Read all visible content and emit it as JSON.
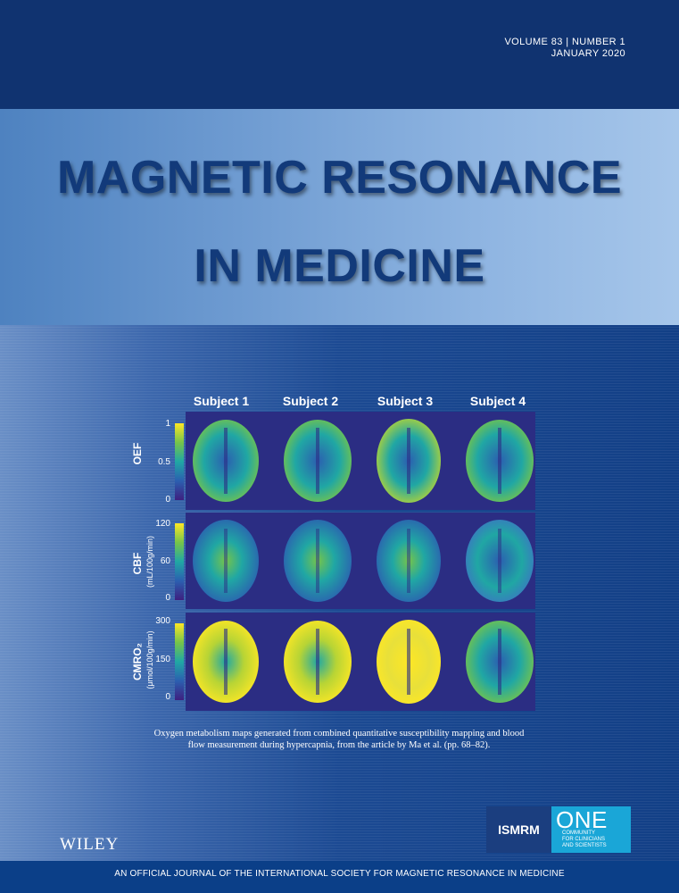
{
  "volume_issue": "VOLUME 83 | NUMBER 1",
  "issue_date": "JANUARY 2020",
  "journal_title_line1": "MAGNETIC RESONANCE",
  "journal_title_line2": "IN MEDICINE",
  "figure": {
    "columns": [
      "Subject 1",
      "Subject 2",
      "Subject 3",
      "Subject 4"
    ],
    "rows": [
      {
        "label": "OEF",
        "unit": "",
        "ticks": [
          "1",
          "0.5",
          "0"
        ]
      },
      {
        "label": "CBF",
        "unit": "(mL/100g/min)",
        "ticks": [
          "120",
          "60",
          "0"
        ]
      },
      {
        "label": "CMRO₂",
        "unit": "(μmol/100g/min)",
        "ticks": [
          "300",
          "150",
          "0"
        ]
      }
    ],
    "colormap": [
      "#3e1f7f",
      "#2b5fb0",
      "#20a7a4",
      "#76c44a",
      "#fde725"
    ],
    "panel_background": "#2b2d83"
  },
  "caption_line1": "Oxygen metabolism maps generated from combined quantitative susceptibility mapping and blood",
  "caption_line2": "flow measurement during hypercapnia, from the article by Ma et al. (pp. 68–82).",
  "publisher_logo": "WILEY",
  "society_logo": {
    "name": "ISMRM",
    "word": "ONE",
    "subtitle_1": "COMMUNITY",
    "subtitle_2": "FOR CLINICIANS",
    "subtitle_3": "AND SCIENTISTS"
  },
  "footer": "AN OFFICIAL JOURNAL OF THE INTERNATIONAL SOCIETY FOR MAGNETIC RESONANCE IN MEDICINE",
  "colors": {
    "top_band": "#103370",
    "title_text": "#123a7a",
    "footer_band": "#0b3f88",
    "one_logo": "#1aa6d7"
  }
}
